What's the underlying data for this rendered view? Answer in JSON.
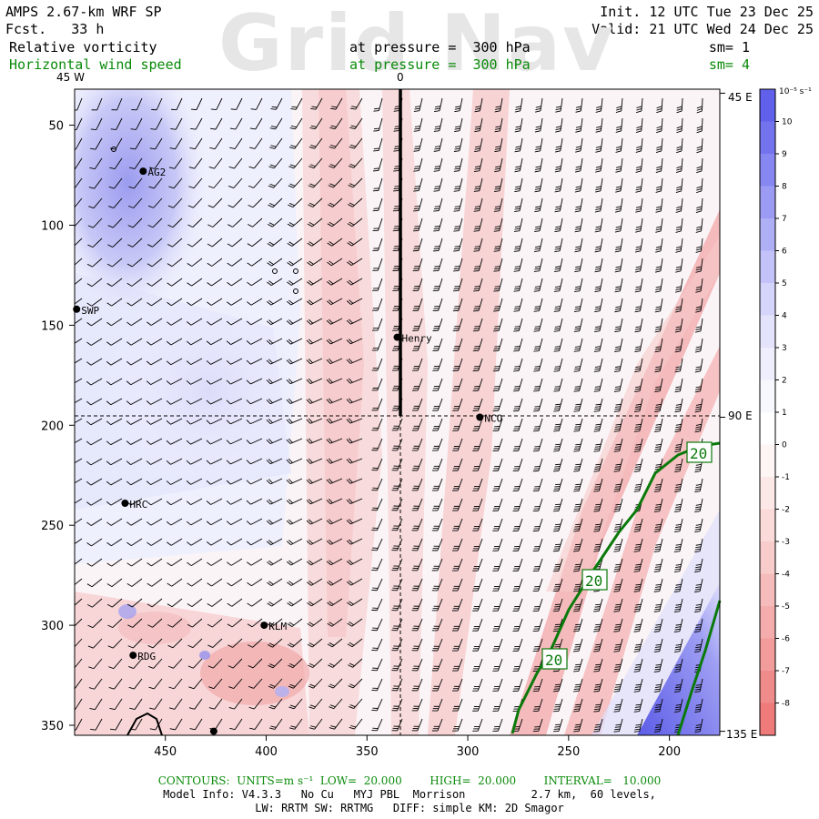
{
  "header": {
    "model": "AMPS 2.67-km WRF SP",
    "fcst": "Fcst.   33 h",
    "init": "Init. 12 UTC Tue 23 Dec 25",
    "valid": "Valid: 21 UTC Wed 24 Dec 25",
    "field1": "Relative vorticity",
    "field1_level": "at pressure =  300 hPa",
    "field1_sm": "sm= 1",
    "field2": "Horizontal wind speed",
    "field2_level": "at pressure =  300 hPa",
    "field2_sm": "sm= 4",
    "watermark": "Grid Nav"
  },
  "axes": {
    "top_labels": [
      {
        "text": "45 W",
        "x_units": 474
      },
      {
        "text": "0",
        "x_units": 335
      }
    ],
    "right_labels": [
      {
        "text": "45 E",
        "y_units": 34
      },
      {
        "text": "90 E",
        "y_units": 196
      },
      {
        "text": "135 E",
        "y_units": 353
      }
    ],
    "x_ticks": [
      450,
      400,
      350,
      300,
      250,
      200
    ],
    "y_ticks": [
      50,
      100,
      150,
      200,
      250,
      300,
      350
    ],
    "x_range": [
      495,
      175
    ],
    "y_range": [
      32,
      355
    ]
  },
  "colorbar": {
    "unit": "10⁻⁵ s⁻¹",
    "labels": [
      "10",
      "9",
      "8",
      "7",
      "6",
      "5",
      "4",
      "3",
      "2",
      "1",
      "0",
      "-1",
      "-2",
      "-3",
      "-4",
      "-5",
      "-6",
      "-7",
      "-8"
    ],
    "colors": [
      "#6060ea",
      "#7373ee",
      "#8787f1",
      "#9b9bf4",
      "#afaff6",
      "#c3c3f9",
      "#d5d5fb",
      "#e3e3fc",
      "#eeeefd",
      "#f7f7fe",
      "#ffffff",
      "#fef5f5",
      "#fde8e8",
      "#fbdada",
      "#f9cccc",
      "#f6bcbc",
      "#f4acac",
      "#f29c9c",
      "#f08b8b",
      "#ef7a7a"
    ]
  },
  "sites": [
    {
      "name": "AG2",
      "x": 461,
      "y": 73
    },
    {
      "name": "SWP",
      "x": 494,
      "y": 142
    },
    {
      "name": "Henry",
      "x": 335,
      "y": 156
    },
    {
      "name": "NCO",
      "x": 294,
      "y": 196
    },
    {
      "name": "HRC",
      "x": 470,
      "y": 239
    },
    {
      "name": "KLM",
      "x": 401,
      "y": 300
    },
    {
      "name": "RDG",
      "x": 466,
      "y": 315
    },
    {
      "name": "",
      "x": 426,
      "y": 353
    }
  ],
  "contour_labels": [
    "20",
    "20",
    "20"
  ],
  "footer": {
    "contours": "CONTOURS:  UNITS=m s⁻¹  LOW=  20.000        HIGH=  20.000        INTERVAL=   10.000",
    "model_info": "Model Info: V4.3.3   No Cu   MYJ PBL  Morrison          2.7 km,  60 levels,",
    "physics": "LW: RRTM SW: RRTMG   DIFF: simple KM: 2D Smagor"
  },
  "colors": {
    "wind_contour": "#0a7a0a",
    "header_green": "#0a8a0a"
  }
}
